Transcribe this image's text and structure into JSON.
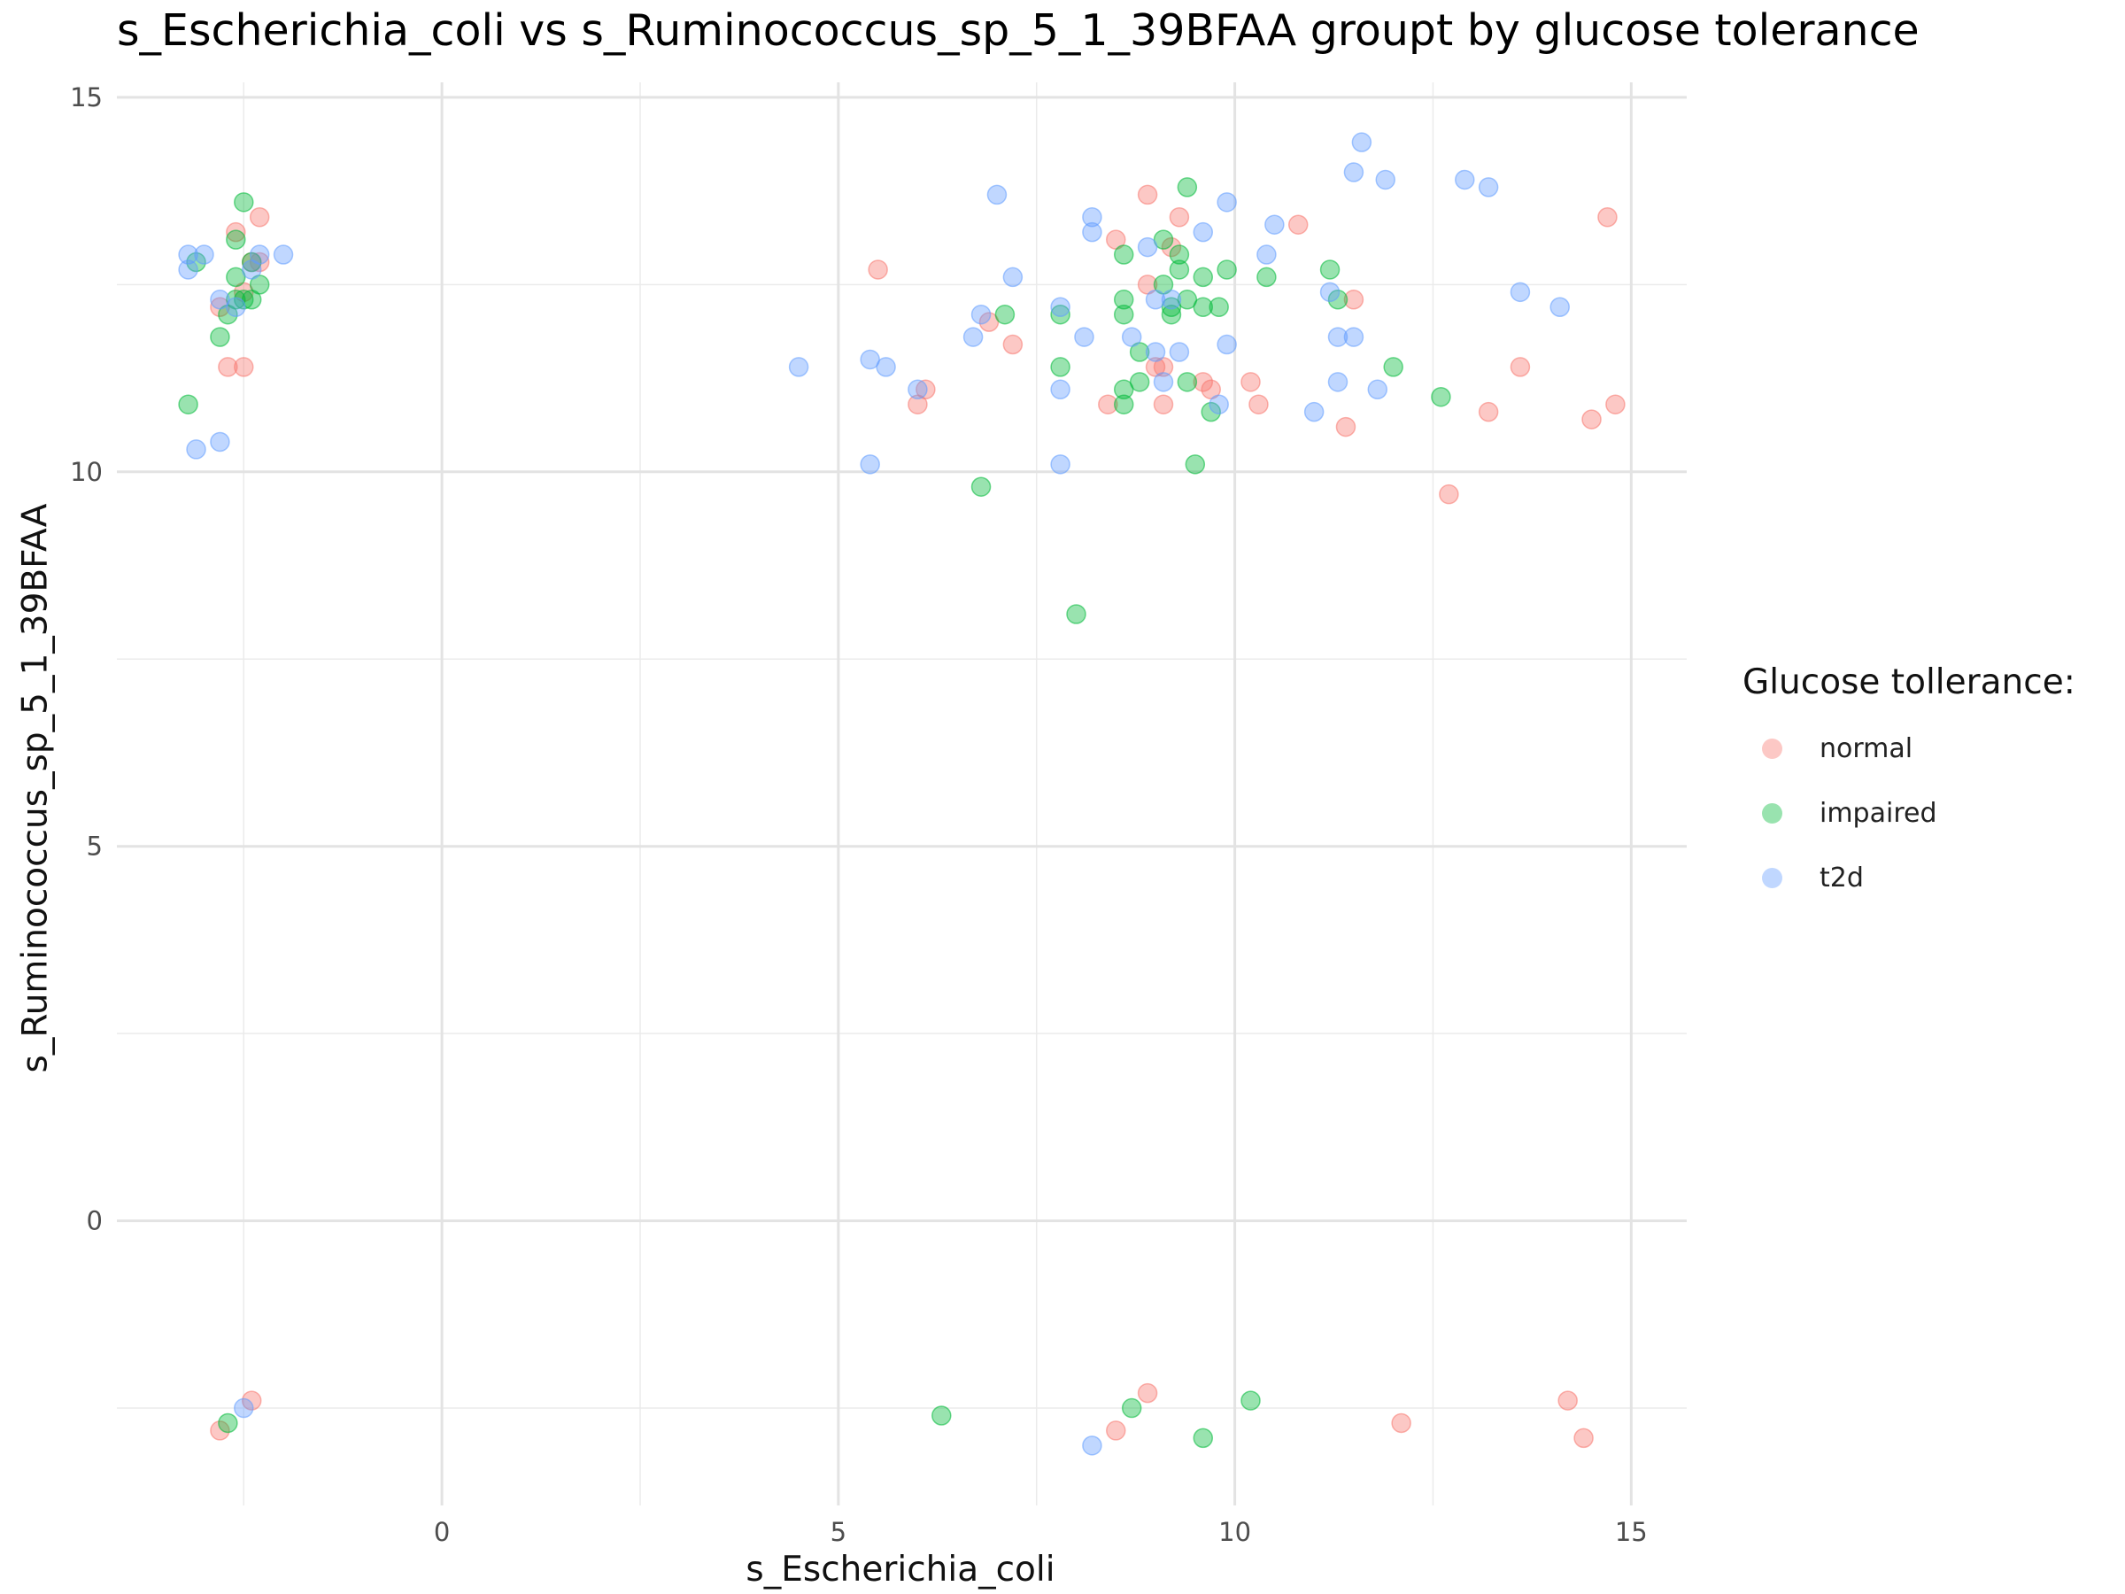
{
  "chart_data": {
    "type": "scatter",
    "title": "s_Escherichia_coli vs s_Ruminococcus_sp_5_1_39BFAA groupt by glucose tolerance",
    "xlabel": "s_Escherichia_coli",
    "ylabel": "s_Ruminococcus_sp_5_1_39BFAA",
    "xlim": [
      -4.1,
      15.7
    ],
    "ylim": [
      -3.8,
      15.2
    ],
    "xticks": [
      0,
      5,
      10,
      15
    ],
    "yticks": [
      0,
      5,
      10,
      15
    ],
    "grid": true,
    "legend": {
      "title": "Glucose tollerance:",
      "position": "right"
    },
    "series": [
      {
        "name": "normal",
        "color": "#F8766D",
        "points": [
          [
            -2.6,
            13.2
          ],
          [
            -2.3,
            13.4
          ],
          [
            -2.4,
            12.8
          ],
          [
            -2.3,
            12.8
          ],
          [
            -2.5,
            12.4
          ],
          [
            -2.8,
            12.2
          ],
          [
            -2.7,
            11.4
          ],
          [
            -2.5,
            11.4
          ],
          [
            -2.8,
            -2.8
          ],
          [
            -2.4,
            -2.4
          ],
          [
            5.5,
            12.7
          ],
          [
            6.9,
            12.0
          ],
          [
            7.2,
            11.7
          ],
          [
            6.1,
            11.1
          ],
          [
            6.0,
            10.9
          ],
          [
            8.9,
            13.7
          ],
          [
            9.3,
            13.4
          ],
          [
            10.8,
            13.3
          ],
          [
            8.5,
            13.1
          ],
          [
            9.2,
            13.0
          ],
          [
            8.9,
            12.5
          ],
          [
            9.0,
            11.4
          ],
          [
            9.1,
            11.4
          ],
          [
            9.6,
            11.2
          ],
          [
            9.7,
            11.1
          ],
          [
            10.2,
            11.2
          ],
          [
            8.4,
            10.9
          ],
          [
            9.1,
            10.9
          ],
          [
            10.3,
            10.9
          ],
          [
            11.4,
            10.6
          ],
          [
            11.5,
            12.3
          ],
          [
            12.7,
            9.7
          ],
          [
            13.2,
            10.8
          ],
          [
            13.6,
            11.4
          ],
          [
            14.5,
            10.7
          ],
          [
            14.7,
            13.4
          ],
          [
            14.8,
            10.9
          ],
          [
            8.9,
            -2.3
          ],
          [
            8.5,
            -2.8
          ],
          [
            12.1,
            -2.7
          ],
          [
            14.2,
            -2.4
          ],
          [
            14.4,
            -2.9
          ]
        ]
      },
      {
        "name": "impaired",
        "color": "#00BA38",
        "points": [
          [
            -2.5,
            13.6
          ],
          [
            -2.6,
            13.1
          ],
          [
            -3.1,
            12.8
          ],
          [
            -2.4,
            12.8
          ],
          [
            -2.6,
            12.6
          ],
          [
            -2.3,
            12.5
          ],
          [
            -2.6,
            12.3
          ],
          [
            -2.5,
            12.3
          ],
          [
            -2.4,
            12.3
          ],
          [
            -2.7,
            12.1
          ],
          [
            -2.8,
            11.8
          ],
          [
            -3.2,
            10.9
          ],
          [
            -2.7,
            -2.7
          ],
          [
            7.1,
            12.1
          ],
          [
            7.8,
            12.1
          ],
          [
            7.8,
            11.4
          ],
          [
            6.8,
            9.8
          ],
          [
            8.0,
            8.1
          ],
          [
            9.4,
            13.8
          ],
          [
            9.1,
            13.1
          ],
          [
            9.3,
            12.9
          ],
          [
            8.6,
            12.9
          ],
          [
            9.9,
            12.7
          ],
          [
            9.3,
            12.7
          ],
          [
            9.6,
            12.6
          ],
          [
            9.1,
            12.5
          ],
          [
            8.6,
            12.3
          ],
          [
            9.4,
            12.3
          ],
          [
            9.2,
            12.2
          ],
          [
            9.6,
            12.2
          ],
          [
            9.8,
            12.2
          ],
          [
            8.6,
            12.1
          ],
          [
            9.2,
            12.1
          ],
          [
            8.8,
            11.6
          ],
          [
            8.8,
            11.2
          ],
          [
            9.4,
            11.2
          ],
          [
            8.6,
            11.1
          ],
          [
            8.6,
            10.9
          ],
          [
            9.7,
            10.8
          ],
          [
            9.5,
            10.1
          ],
          [
            10.4,
            12.6
          ],
          [
            11.2,
            12.7
          ],
          [
            11.3,
            12.3
          ],
          [
            12.0,
            11.4
          ],
          [
            12.6,
            11.0
          ],
          [
            6.3,
            -2.6
          ],
          [
            8.7,
            -2.5
          ],
          [
            10.2,
            -2.4
          ],
          [
            9.6,
            -2.9
          ]
        ]
      },
      {
        "name": "t2d",
        "color": "#619CFF",
        "points": [
          [
            -3.2,
            12.9
          ],
          [
            -3.0,
            12.9
          ],
          [
            -2.3,
            12.9
          ],
          [
            -2.0,
            12.9
          ],
          [
            -3.2,
            12.7
          ],
          [
            -2.4,
            12.7
          ],
          [
            -2.8,
            12.3
          ],
          [
            -2.6,
            12.2
          ],
          [
            -3.1,
            10.3
          ],
          [
            -2.8,
            10.4
          ],
          [
            -2.5,
            -2.5
          ],
          [
            7.0,
            13.7
          ],
          [
            7.2,
            12.6
          ],
          [
            6.8,
            12.1
          ],
          [
            6.7,
            11.8
          ],
          [
            5.4,
            11.5
          ],
          [
            5.6,
            11.4
          ],
          [
            4.5,
            11.4
          ],
          [
            6.0,
            11.1
          ],
          [
            5.4,
            10.1
          ],
          [
            7.8,
            10.1
          ],
          [
            7.8,
            11.1
          ],
          [
            8.1,
            11.8
          ],
          [
            8.2,
            13.4
          ],
          [
            8.2,
            13.2
          ],
          [
            7.8,
            12.2
          ],
          [
            9.9,
            13.6
          ],
          [
            9.6,
            13.2
          ],
          [
            8.9,
            13.0
          ],
          [
            9.0,
            12.3
          ],
          [
            9.2,
            12.3
          ],
          [
            8.7,
            11.8
          ],
          [
            9.9,
            11.7
          ],
          [
            9.0,
            11.6
          ],
          [
            9.3,
            11.6
          ],
          [
            9.1,
            11.2
          ],
          [
            9.8,
            10.9
          ],
          [
            10.5,
            13.3
          ],
          [
            10.4,
            12.9
          ],
          [
            11.2,
            12.4
          ],
          [
            11.3,
            11.8
          ],
          [
            11.5,
            11.8
          ],
          [
            11.3,
            11.2
          ],
          [
            11.0,
            10.8
          ],
          [
            11.6,
            14.4
          ],
          [
            11.5,
            14.0
          ],
          [
            11.9,
            13.9
          ],
          [
            11.8,
            11.1
          ],
          [
            12.9,
            13.9
          ],
          [
            13.2,
            13.8
          ],
          [
            13.6,
            12.4
          ],
          [
            14.1,
            12.2
          ],
          [
            8.2,
            -3.0
          ]
        ]
      }
    ]
  }
}
